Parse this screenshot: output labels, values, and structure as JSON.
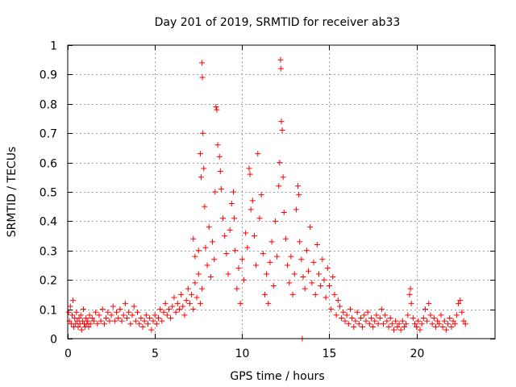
{
  "chart_data": {
    "type": "scatter",
    "title": "Day 201 of 2019, SRMTID for receiver ab33",
    "xlabel": "GPS time / hours",
    "ylabel": "SRMTID / TECUs",
    "xlim": [
      0,
      24.5
    ],
    "ylim": [
      0,
      1
    ],
    "xticks": [
      0,
      5,
      10,
      15,
      20
    ],
    "xtick_labels": [
      "0",
      "5",
      "10",
      "15",
      "20"
    ],
    "yticks": [
      0,
      0.1,
      0.2,
      0.3,
      0.4,
      0.5,
      0.6,
      0.7,
      0.8,
      0.9,
      1
    ],
    "ytick_labels": [
      "0",
      "0.1",
      "0.2",
      "0.3",
      "0.4",
      "0.5",
      "0.6",
      "0.7",
      "0.8",
      "0.9",
      "1"
    ],
    "grid": true,
    "marker": "plus",
    "series": [
      {
        "name": "SRMTID",
        "color": "#ff0000",
        "points": [
          [
            0.05,
            0.09
          ],
          [
            0.1,
            0.06
          ],
          [
            0.15,
            0.11
          ],
          [
            0.2,
            0.05
          ],
          [
            0.25,
            0.08
          ],
          [
            0.3,
            0.13
          ],
          [
            0.35,
            0.04
          ],
          [
            0.4,
            0.07
          ],
          [
            0.45,
            0.05
          ],
          [
            0.5,
            0.09
          ],
          [
            0.55,
            0.06
          ],
          [
            0.6,
            0.04
          ],
          [
            0.65,
            0.07
          ],
          [
            0.7,
            0.05
          ],
          [
            0.75,
            0.08
          ],
          [
            0.8,
            0.03
          ],
          [
            0.85,
            0.06
          ],
          [
            0.9,
            0.1
          ],
          [
            0.95,
            0.05
          ],
          [
            1.0,
            0.04
          ],
          [
            1.05,
            0.07
          ],
          [
            1.1,
            0.05
          ],
          [
            1.15,
            0.06
          ],
          [
            1.2,
            0.04
          ],
          [
            1.25,
            0.08
          ],
          [
            1.3,
            0.05
          ],
          [
            1.4,
            0.07
          ],
          [
            1.5,
            0.06
          ],
          [
            1.6,
            0.09
          ],
          [
            1.7,
            0.05
          ],
          [
            1.8,
            0.08
          ],
          [
            1.9,
            0.06
          ],
          [
            2.0,
            0.1
          ],
          [
            2.1,
            0.05
          ],
          [
            2.2,
            0.07
          ],
          [
            2.3,
            0.09
          ],
          [
            2.4,
            0.06
          ],
          [
            2.5,
            0.08
          ],
          [
            2.6,
            0.11
          ],
          [
            2.7,
            0.06
          ],
          [
            2.8,
            0.09
          ],
          [
            2.9,
            0.07
          ],
          [
            3.0,
            0.1
          ],
          [
            3.1,
            0.06
          ],
          [
            3.2,
            0.08
          ],
          [
            3.3,
            0.12
          ],
          [
            3.4,
            0.07
          ],
          [
            3.5,
            0.09
          ],
          [
            3.6,
            0.05
          ],
          [
            3.7,
            0.08
          ],
          [
            3.8,
            0.11
          ],
          [
            3.9,
            0.06
          ],
          [
            4.0,
            0.09
          ],
          [
            4.1,
            0.05
          ],
          [
            4.2,
            0.07
          ],
          [
            4.3,
            0.04
          ],
          [
            4.4,
            0.06
          ],
          [
            4.5,
            0.08
          ],
          [
            4.6,
            0.05
          ],
          [
            4.7,
            0.07
          ],
          [
            4.8,
            0.03
          ],
          [
            4.9,
            0.06
          ],
          [
            5.0,
            0.08
          ],
          [
            5.1,
            0.05
          ],
          [
            5.2,
            0.07
          ],
          [
            5.3,
            0.1
          ],
          [
            5.4,
            0.06
          ],
          [
            5.5,
            0.09
          ],
          [
            5.6,
            0.12
          ],
          [
            5.7,
            0.08
          ],
          [
            5.8,
            0.1
          ],
          [
            5.9,
            0.07
          ],
          [
            6.0,
            0.11
          ],
          [
            6.1,
            0.14
          ],
          [
            6.2,
            0.09
          ],
          [
            6.3,
            0.12
          ],
          [
            6.4,
            0.1
          ],
          [
            6.5,
            0.15
          ],
          [
            6.6,
            0.11
          ],
          [
            6.7,
            0.08
          ],
          [
            6.8,
            0.13
          ],
          [
            6.9,
            0.17
          ],
          [
            7.0,
            0.12
          ],
          [
            7.1,
            0.15
          ],
          [
            7.2,
            0.1
          ],
          [
            7.3,
            0.19
          ],
          [
            7.4,
            0.14
          ],
          [
            7.5,
            0.22
          ],
          [
            7.6,
            0.12
          ],
          [
            7.7,
            0.17
          ],
          [
            7.2,
            0.34
          ],
          [
            7.3,
            0.28
          ],
          [
            7.5,
            0.3
          ],
          [
            7.6,
            0.63
          ],
          [
            7.65,
            0.55
          ],
          [
            7.7,
            0.94
          ],
          [
            7.72,
            0.89
          ],
          [
            7.75,
            0.7
          ],
          [
            7.8,
            0.58
          ],
          [
            7.85,
            0.45
          ],
          [
            7.9,
            0.31
          ],
          [
            8.0,
            0.25
          ],
          [
            8.1,
            0.38
          ],
          [
            8.2,
            0.21
          ],
          [
            8.3,
            0.33
          ],
          [
            8.4,
            0.27
          ],
          [
            8.45,
            0.5
          ],
          [
            8.5,
            0.79
          ],
          [
            8.55,
            0.78
          ],
          [
            8.6,
            0.66
          ],
          [
            8.7,
            0.62
          ],
          [
            8.75,
            0.57
          ],
          [
            8.8,
            0.51
          ],
          [
            8.9,
            0.41
          ],
          [
            9.0,
            0.35
          ],
          [
            9.1,
            0.29
          ],
          [
            9.2,
            0.22
          ],
          [
            9.3,
            0.37
          ],
          [
            9.4,
            0.46
          ],
          [
            9.5,
            0.5
          ],
          [
            9.55,
            0.41
          ],
          [
            9.6,
            0.3
          ],
          [
            9.7,
            0.17
          ],
          [
            9.8,
            0.24
          ],
          [
            9.9,
            0.12
          ],
          [
            10.0,
            0.27
          ],
          [
            10.1,
            0.2
          ],
          [
            10.2,
            0.36
          ],
          [
            10.3,
            0.31
          ],
          [
            10.4,
            0.58
          ],
          [
            10.45,
            0.56
          ],
          [
            10.5,
            0.44
          ],
          [
            10.6,
            0.47
          ],
          [
            10.7,
            0.35
          ],
          [
            10.8,
            0.25
          ],
          [
            10.9,
            0.63
          ],
          [
            11.0,
            0.41
          ],
          [
            11.1,
            0.49
          ],
          [
            11.2,
            0.29
          ],
          [
            11.3,
            0.15
          ],
          [
            11.4,
            0.22
          ],
          [
            11.5,
            0.12
          ],
          [
            11.6,
            0.26
          ],
          [
            11.7,
            0.33
          ],
          [
            11.8,
            0.18
          ],
          [
            11.9,
            0.4
          ],
          [
            12.0,
            0.28
          ],
          [
            12.1,
            0.52
          ],
          [
            12.15,
            0.6
          ],
          [
            12.2,
            0.95
          ],
          [
            12.22,
            0.92
          ],
          [
            12.25,
            0.74
          ],
          [
            12.3,
            0.71
          ],
          [
            12.35,
            0.55
          ],
          [
            12.4,
            0.43
          ],
          [
            12.5,
            0.34
          ],
          [
            12.6,
            0.25
          ],
          [
            12.7,
            0.19
          ],
          [
            12.8,
            0.28
          ],
          [
            12.9,
            0.15
          ],
          [
            13.0,
            0.22
          ],
          [
            13.1,
            0.44
          ],
          [
            13.2,
            0.52
          ],
          [
            13.25,
            0.49
          ],
          [
            13.3,
            0.33
          ],
          [
            13.4,
            0.27
          ],
          [
            13.45,
            0.0
          ],
          [
            13.5,
            0.21
          ],
          [
            13.6,
            0.17
          ],
          [
            13.7,
            0.3
          ],
          [
            13.8,
            0.23
          ],
          [
            13.9,
            0.38
          ],
          [
            14.0,
            0.19
          ],
          [
            14.1,
            0.26
          ],
          [
            14.2,
            0.15
          ],
          [
            14.3,
            0.32
          ],
          [
            14.4,
            0.22
          ],
          [
            14.5,
            0.18
          ],
          [
            14.6,
            0.27
          ],
          [
            14.7,
            0.2
          ],
          [
            14.8,
            0.14
          ],
          [
            14.9,
            0.24
          ],
          [
            15.0,
            0.18
          ],
          [
            15.1,
            0.1
          ],
          [
            15.2,
            0.21
          ],
          [
            15.3,
            0.15
          ],
          [
            15.4,
            0.08
          ],
          [
            15.5,
            0.13
          ],
          [
            15.6,
            0.11
          ],
          [
            15.7,
            0.07
          ],
          [
            15.8,
            0.09
          ],
          [
            15.9,
            0.06
          ],
          [
            16.0,
            0.08
          ],
          [
            16.1,
            0.05
          ],
          [
            16.2,
            0.1
          ],
          [
            16.3,
            0.07
          ],
          [
            16.4,
            0.04
          ],
          [
            16.5,
            0.06
          ],
          [
            16.6,
            0.09
          ],
          [
            16.7,
            0.05
          ],
          [
            16.8,
            0.07
          ],
          [
            16.9,
            0.04
          ],
          [
            17.0,
            0.08
          ],
          [
            17.1,
            0.06
          ],
          [
            17.2,
            0.09
          ],
          [
            17.3,
            0.05
          ],
          [
            17.4,
            0.07
          ],
          [
            17.5,
            0.04
          ],
          [
            17.6,
            0.06
          ],
          [
            17.7,
            0.08
          ],
          [
            17.8,
            0.05
          ],
          [
            17.9,
            0.07
          ],
          [
            18.0,
            0.1
          ],
          [
            18.1,
            0.05
          ],
          [
            18.2,
            0.08
          ],
          [
            18.3,
            0.06
          ],
          [
            18.4,
            0.04
          ],
          [
            18.5,
            0.07
          ],
          [
            18.6,
            0.05
          ],
          [
            18.7,
            0.03
          ],
          [
            18.8,
            0.06
          ],
          [
            18.9,
            0.04
          ],
          [
            19.0,
            0.05
          ],
          [
            19.1,
            0.03
          ],
          [
            19.2,
            0.06
          ],
          [
            19.3,
            0.04
          ],
          [
            19.4,
            0.05
          ],
          [
            19.5,
            0.08
          ],
          [
            19.6,
            0.15
          ],
          [
            19.65,
            0.17
          ],
          [
            19.7,
            0.12
          ],
          [
            19.8,
            0.07
          ],
          [
            19.9,
            0.05
          ],
          [
            20.0,
            0.04
          ],
          [
            20.1,
            0.06
          ],
          [
            20.2,
            0.03
          ],
          [
            20.3,
            0.05
          ],
          [
            20.4,
            0.07
          ],
          [
            20.5,
            0.1
          ],
          [
            20.6,
            0.06
          ],
          [
            20.7,
            0.12
          ],
          [
            20.8,
            0.08
          ],
          [
            20.9,
            0.05
          ],
          [
            21.0,
            0.07
          ],
          [
            21.1,
            0.04
          ],
          [
            21.2,
            0.06
          ],
          [
            21.3,
            0.05
          ],
          [
            21.4,
            0.08
          ],
          [
            21.5,
            0.04
          ],
          [
            21.6,
            0.06
          ],
          [
            21.7,
            0.03
          ],
          [
            21.8,
            0.05
          ],
          [
            21.9,
            0.07
          ],
          [
            22.0,
            0.04
          ],
          [
            22.1,
            0.06
          ],
          [
            22.2,
            0.05
          ],
          [
            22.3,
            0.08
          ],
          [
            22.4,
            0.12
          ],
          [
            22.5,
            0.13
          ],
          [
            22.6,
            0.09
          ],
          [
            22.7,
            0.06
          ],
          [
            22.8,
            0.05
          ]
        ]
      }
    ]
  }
}
